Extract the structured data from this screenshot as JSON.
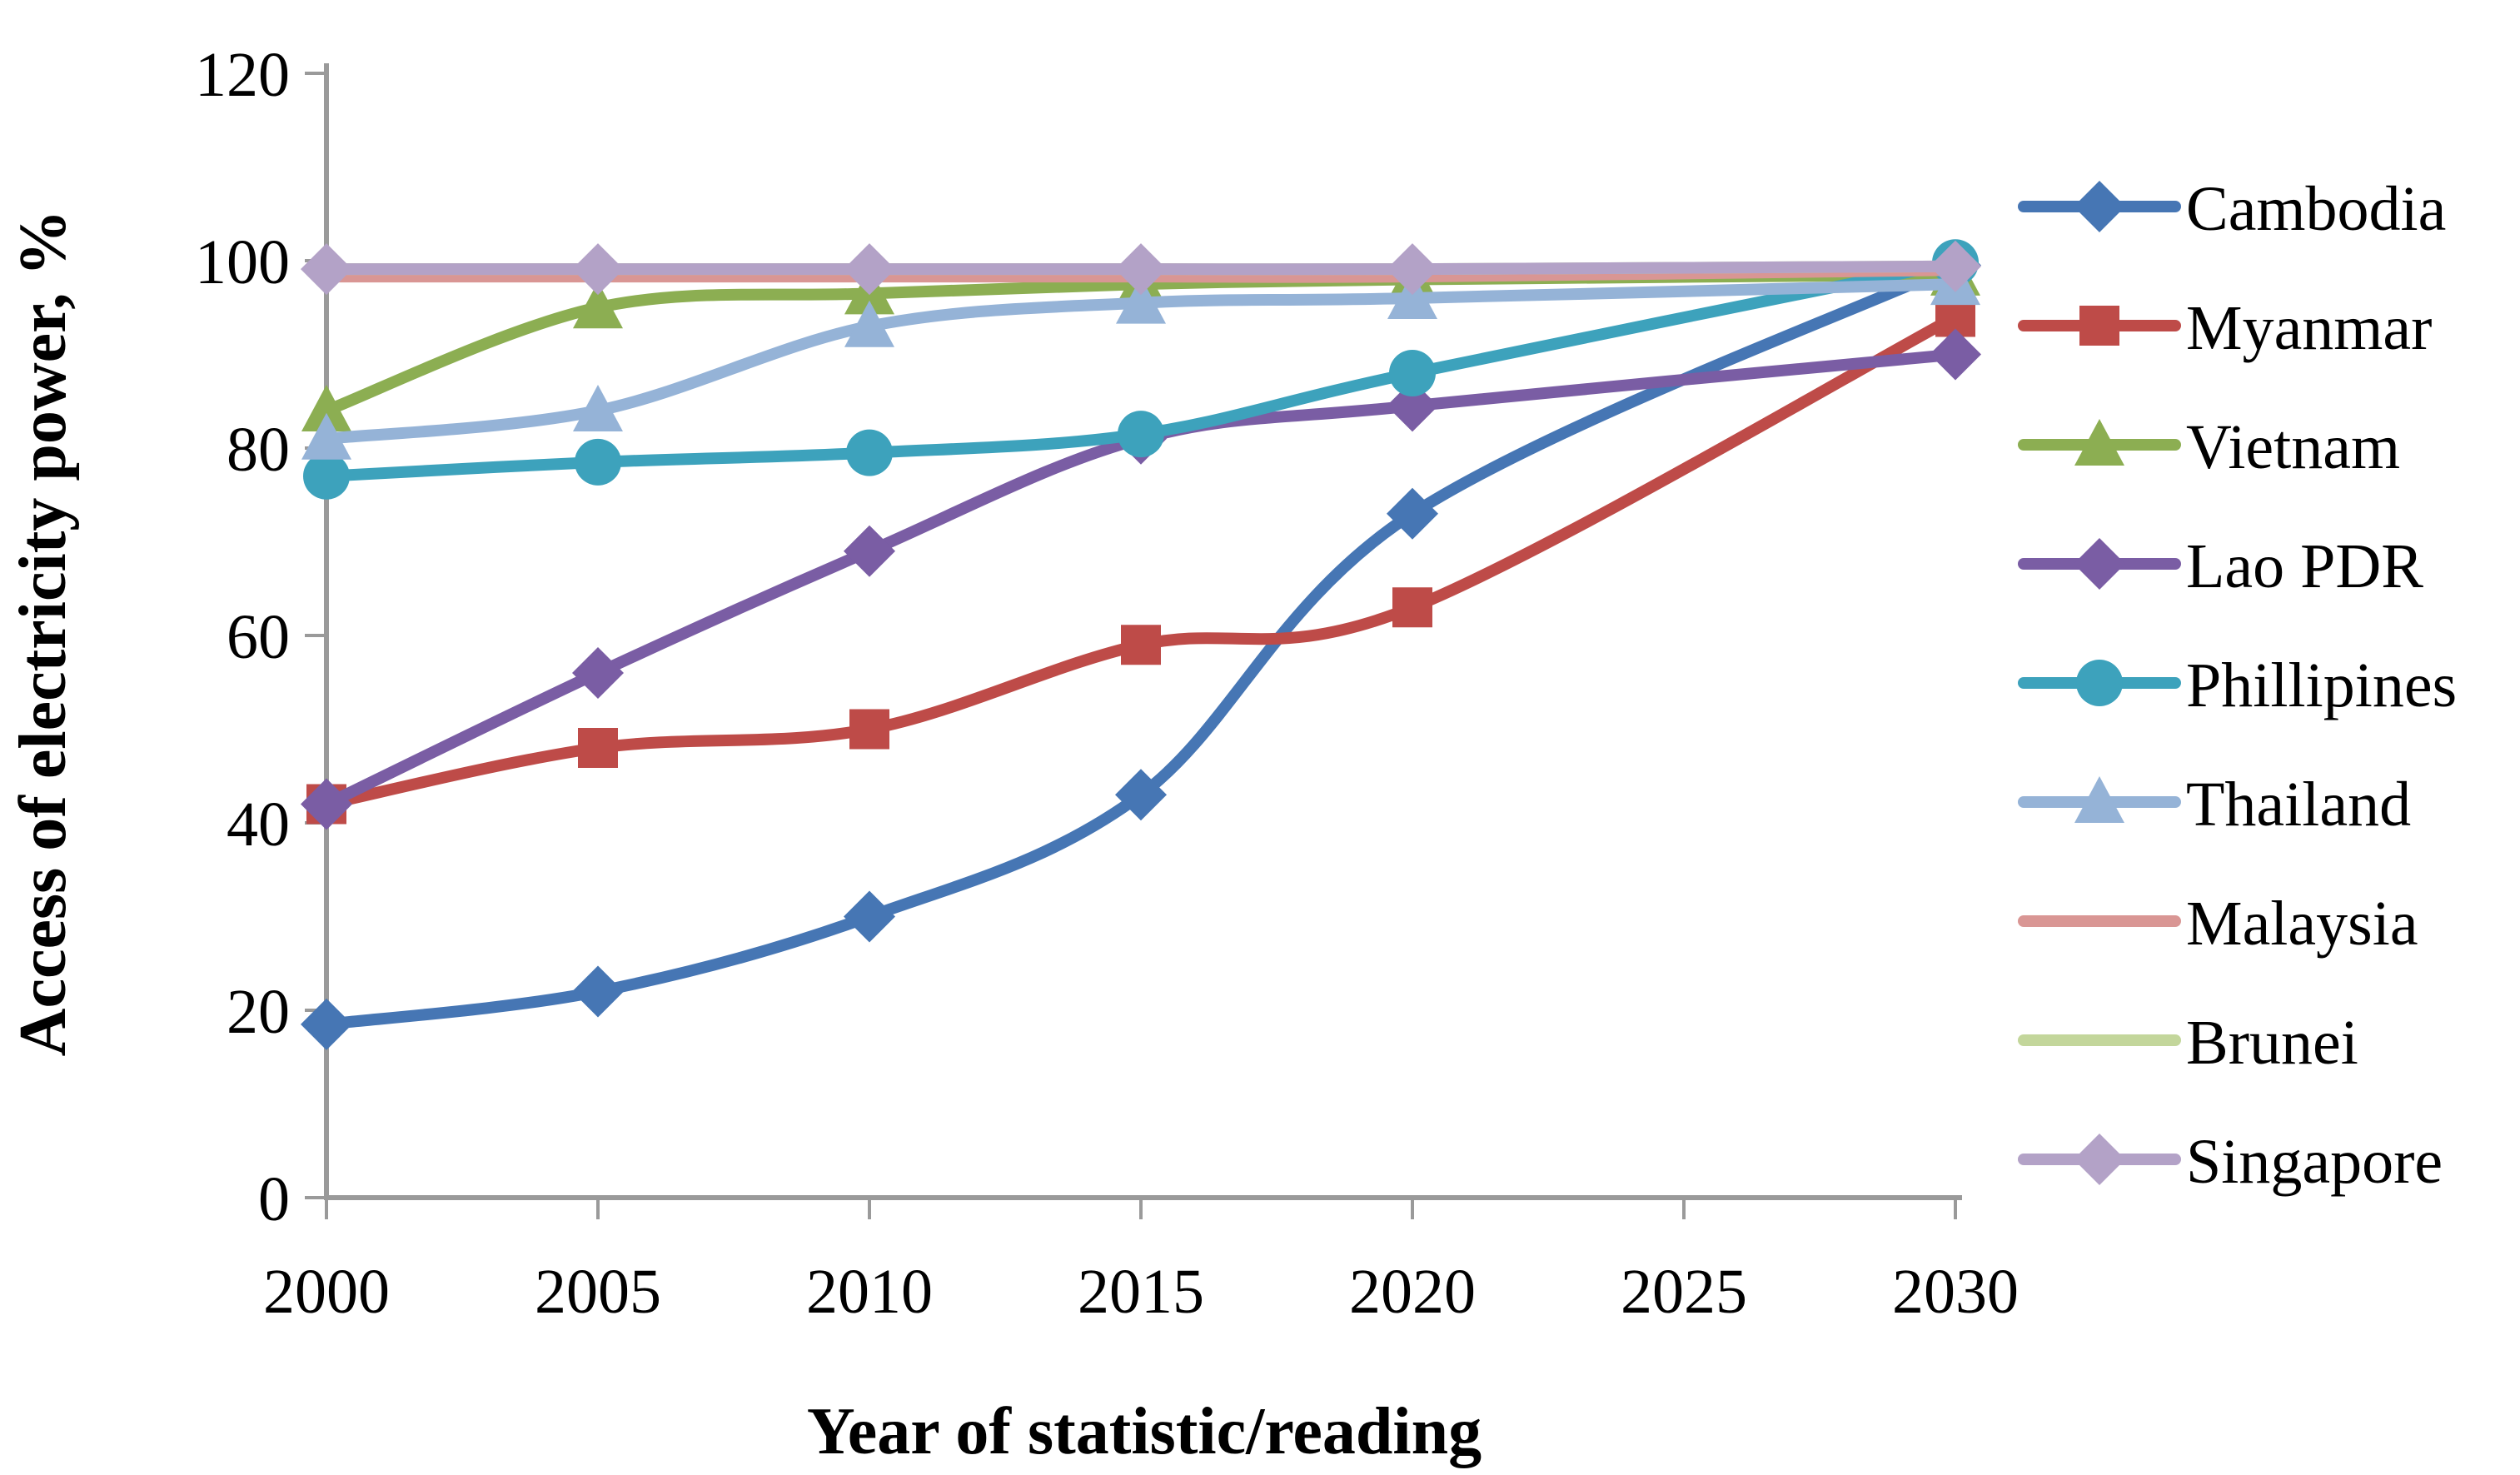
{
  "figure": {
    "background": "#ffffff",
    "axis_color": "#9A9A9A",
    "text_color": "#000000"
  },
  "chart_data": {
    "type": "line",
    "title": "",
    "xlabel": "Year of statistic/reading",
    "ylabel": "Access of electricity power, %",
    "x": [
      2000,
      2005,
      2010,
      2015,
      2020,
      2030
    ],
    "x_ticks": [
      2000,
      2005,
      2010,
      2015,
      2020,
      2025,
      2030
    ],
    "y_ticks": [
      0,
      20,
      40,
      60,
      80,
      100,
      120
    ],
    "xlim": [
      2000,
      2030
    ],
    "ylim": [
      0,
      120
    ],
    "grid": false,
    "legend_position": "right",
    "series": [
      {
        "name": "Cambodia",
        "color": "#4676B4",
        "marker": "diamond",
        "values": [
          18.5,
          22,
          30,
          43,
          73,
          99.5
        ]
      },
      {
        "name": "Myanmar",
        "color": "#BE4B48",
        "marker": "square",
        "values": [
          42,
          48,
          50,
          59,
          63,
          94
        ]
      },
      {
        "name": "Vietnam",
        "color": "#8CAE52",
        "marker": "triangle",
        "values": [
          84,
          95,
          96.5,
          97.5,
          98,
          98.5
        ]
      },
      {
        "name": "Lao PDR",
        "color": "#7A5DA4",
        "marker": "diamond",
        "values": [
          42,
          56,
          69,
          81,
          84.5,
          90
        ]
      },
      {
        "name": "Phillipines",
        "color": "#3DA2BC",
        "marker": "circle",
        "values": [
          77,
          78.5,
          79.5,
          81.5,
          88,
          99.8
        ]
      },
      {
        "name": "Thailand",
        "color": "#95B3D7",
        "marker": "triangle",
        "values": [
          81,
          84,
          93,
          95.5,
          96,
          97.5
        ]
      },
      {
        "name": "Malaysia",
        "color": "#D99694",
        "marker": "none",
        "values": [
          98.3,
          98.3,
          98.3,
          98.3,
          98.3,
          99
        ]
      },
      {
        "name": "Brunei",
        "color": "#C3D69B",
        "marker": "none",
        "values": [
          99.1,
          99.1,
          99.1,
          99.1,
          99.1,
          99.4
        ]
      },
      {
        "name": "Singapore",
        "color": "#B3A2C7",
        "marker": "diamond",
        "values": [
          99.1,
          99.1,
          99.1,
          99.1,
          99.1,
          99.4
        ]
      }
    ]
  }
}
